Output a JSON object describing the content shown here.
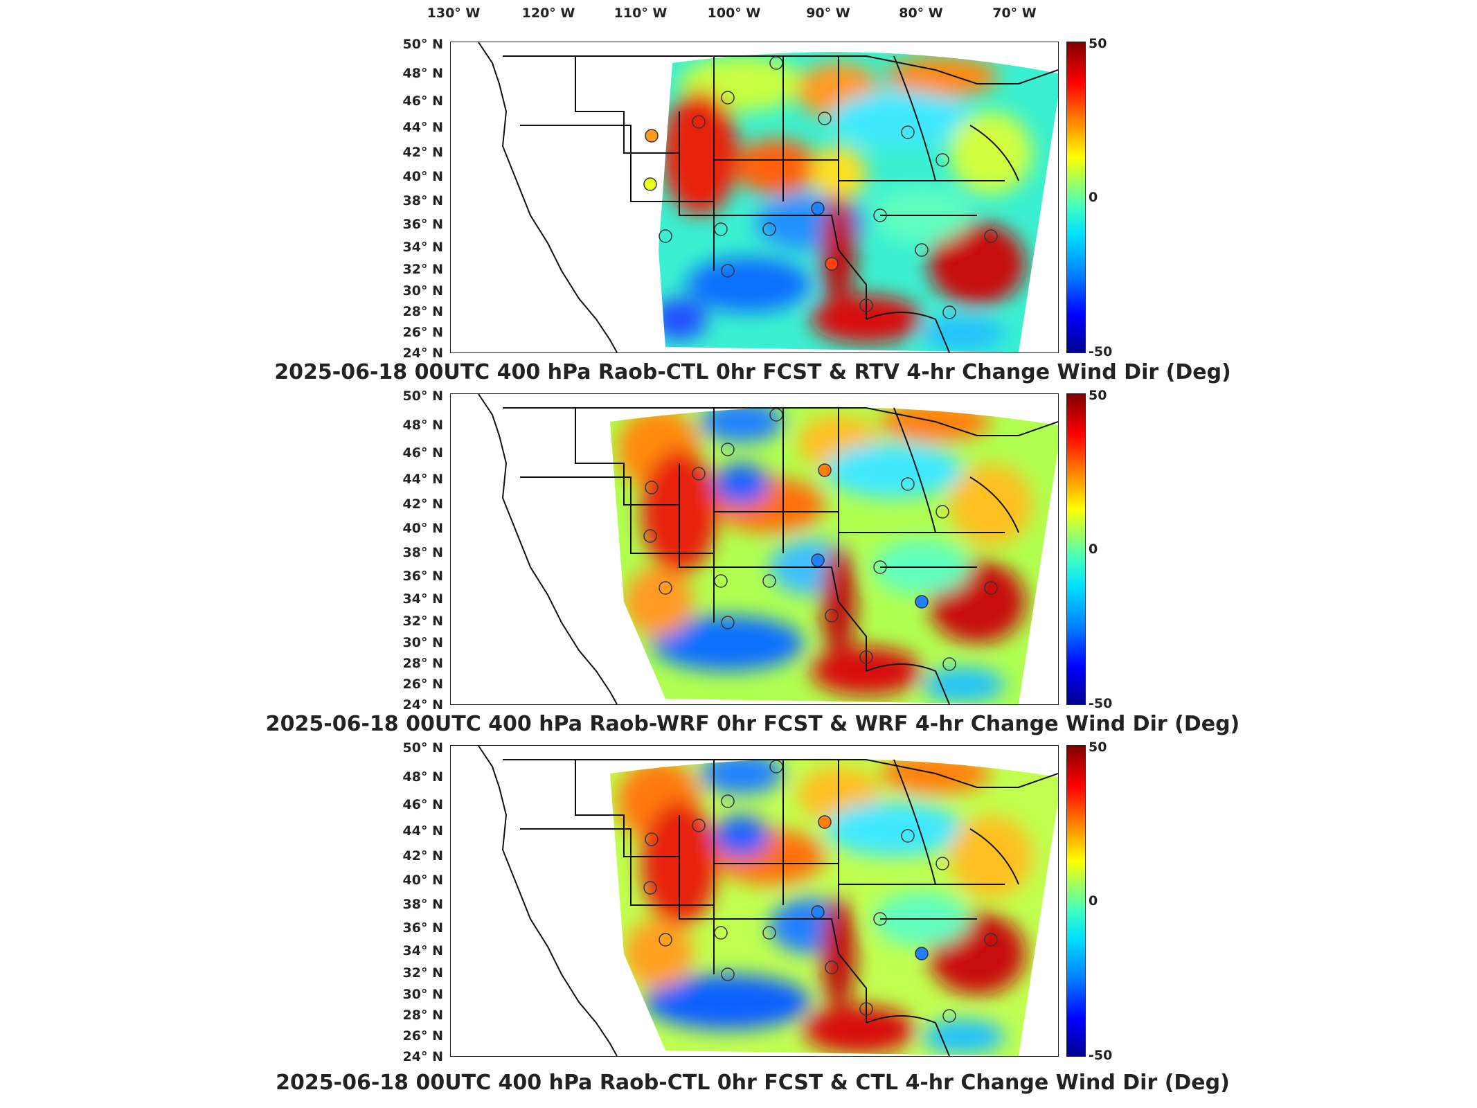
{
  "lon_labels": [
    "130° W",
    "120° W",
    "110° W",
    "100° W",
    "90° W",
    "80° W",
    "70° W"
  ],
  "lat_labels": [
    "50° N",
    "48° N",
    "46° N",
    "44° N",
    "42° N",
    "40° N",
    "38° N",
    "36° N",
    "34° N",
    "32° N",
    "30° N",
    "28° N",
    "26° N",
    "24° N"
  ],
  "colorbar": {
    "max_label": "50",
    "mid_label": "0",
    "min_label": "-50",
    "min": -50,
    "max": 50
  },
  "colormap": [
    "#00008f",
    "#0000ff",
    "#0080ff",
    "#00e0ff",
    "#40ffc0",
    "#a0ff60",
    "#ffff00",
    "#ff8000",
    "#ff0000",
    "#800000"
  ],
  "panels": [
    {
      "title": "2025-06-18 00UTC 400 hPa Raob-CTL 0hr FCST & RTV 4-hr Change Wind Dir (Deg)"
    },
    {
      "title": "2025-06-18 00UTC 400 hPa Raob-WRF 0hr FCST & WRF 4-hr Change Wind Dir (Deg)"
    },
    {
      "title": "2025-06-18 00UTC 400 hPa Raob-CTL 0hr FCST & CTL 4-hr Change Wind Dir (Deg)"
    }
  ]
}
